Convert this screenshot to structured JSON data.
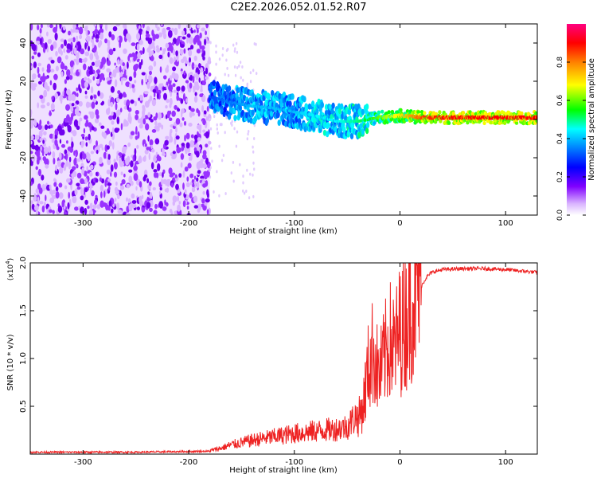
{
  "title": "C2E2.2026.052.01.52.R07",
  "chart_data": [
    {
      "type": "heatmap",
      "xlabel": "Height of straight line (km)",
      "ylabel": "Frequency (Hz)",
      "xlim": [
        -350,
        130
      ],
      "ylim": [
        -50,
        50
      ],
      "xticks": [
        -300,
        -200,
        -100,
        0,
        100
      ],
      "yticks": [
        -40,
        -20,
        0,
        20,
        40
      ],
      "colorbar": {
        "label": "Normalized spectral amplitude",
        "range": [
          0,
          1
        ],
        "ticks": [
          0.0,
          0.2,
          0.4,
          0.6,
          0.8
        ],
        "colormap": [
          "#ffffff",
          "#cc99ff",
          "#7a00ff",
          "#0000ff",
          "#00ffff",
          "#00ff00",
          "#ffff00",
          "#ff8800",
          "#ff0000",
          "#ff00aa"
        ]
      },
      "noise_region_x": [
        -350,
        -180
      ],
      "signal_track": {
        "x": [
          -180,
          -160,
          -140,
          -120,
          -100,
          -80,
          -60,
          -40,
          -20,
          0,
          20,
          40,
          60,
          80,
          100,
          130
        ],
        "freq": [
          12,
          9,
          7,
          6,
          4,
          2,
          -1,
          -1,
          1,
          2,
          1,
          1,
          1,
          1,
          1,
          1
        ],
        "amplitude": [
          0.3,
          0.35,
          0.4,
          0.4,
          0.4,
          0.45,
          0.45,
          0.5,
          0.6,
          0.7,
          0.85,
          0.9,
          0.9,
          0.9,
          0.9,
          0.9
        ]
      }
    },
    {
      "type": "line",
      "xlabel": "Height of straight line (km)",
      "ylabel": "SNR (10 * v/v)",
      "y_multiplier": "(x10",
      "y_multiplier_exp": "4",
      "xlim": [
        -350,
        130
      ],
      "ylim": [
        0,
        2.0
      ],
      "xticks": [
        -300,
        -200,
        -100,
        0,
        100
      ],
      "yticks": [
        0.5,
        1.0,
        1.5,
        2.0
      ],
      "series": [
        {
          "color": "#ee2222",
          "x": [
            -350,
            -250,
            -180,
            -170,
            -160,
            -140,
            -120,
            -100,
            -80,
            -60,
            -50,
            -40,
            -35,
            -30,
            -25,
            -20,
            -15,
            -10,
            -5,
            0,
            5,
            10,
            15,
            20,
            25,
            30,
            40,
            60,
            80,
            100,
            110,
            120,
            130
          ],
          "y": [
            0.02,
            0.02,
            0.03,
            0.05,
            0.08,
            0.12,
            0.15,
            0.18,
            0.2,
            0.22,
            0.24,
            0.35,
            0.5,
            0.9,
            1.1,
            0.8,
            1.0,
            1.2,
            1.1,
            1.3,
            1.4,
            1.6,
            1.7,
            1.75,
            1.85,
            1.9,
            1.93,
            1.94,
            1.94,
            1.93,
            1.92,
            1.91,
            1.9
          ]
        }
      ]
    }
  ]
}
